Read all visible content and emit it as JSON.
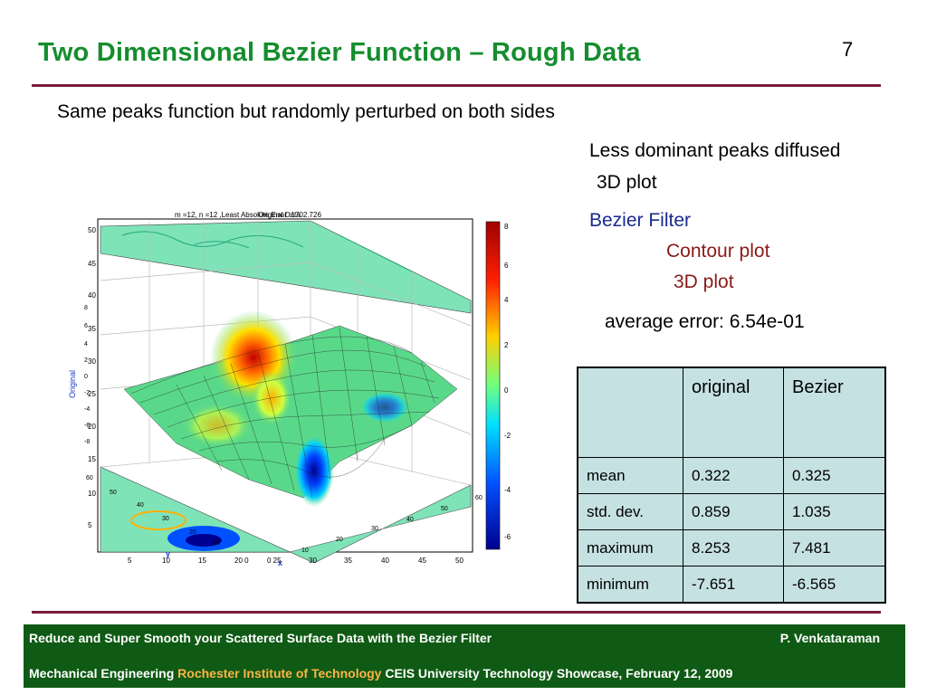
{
  "slide": {
    "title": "Two Dimensional Bezier Function – Rough Data",
    "number": "7",
    "subtitle": "Same peaks function but randomly perturbed on both sides",
    "notes": {
      "line1": "Less dominant peaks diffused",
      "line2": "3D plot",
      "bezier_filter": "Bezier Filter",
      "contour_plot": "Contour plot",
      "line5": "3D plot",
      "average_error": "average error: 6.54e-01"
    },
    "colors": {
      "title": "#158d2e",
      "rule": "#7d1b3f",
      "bezier": "#1a2a8c",
      "contour": "#8b1a1a",
      "footer_bg": "#0f5a14"
    }
  },
  "plot": {
    "header": "m =12, n =12 ,Least Absolute Error :1702.726",
    "overlay_header": "Original Data",
    "y_axis_labels": [
      "50",
      "45",
      "40",
      "35",
      "30",
      "25",
      "20",
      "15",
      "10",
      "5"
    ],
    "x_axis_labels": [
      "5",
      "10",
      "15",
      "20 0",
      "0 25",
      "30",
      "35",
      "40",
      "45",
      "50"
    ],
    "z_axis_labels": [
      "8",
      "6",
      "4",
      "2",
      "0",
      "-2",
      "-4",
      "-6",
      "-8"
    ],
    "colorbar_labels": [
      "8",
      "6",
      "4",
      "2",
      "0",
      "-2",
      "-4",
      "-6"
    ],
    "axis_names": {
      "x": "x",
      "y": "y",
      "z": "Original"
    },
    "contour_labels": [
      "50",
      "40",
      "30",
      "20",
      "10",
      "60",
      "60",
      "50",
      "40",
      "30",
      "20",
      "10"
    ]
  },
  "table": {
    "headers": [
      "",
      "original",
      "Bezier"
    ],
    "rows": [
      {
        "label": "mean",
        "original": "0.322",
        "bezier": "0.325"
      },
      {
        "label": "std. dev.",
        "original": "0.859",
        "bezier": "1.035"
      },
      {
        "label": "maximum",
        "original": "8.253",
        "bezier": "7.481"
      },
      {
        "label": "minimum",
        "original": "-7.651",
        "bezier": "-6.565"
      }
    ]
  },
  "footer": {
    "line1_left": "Reduce and Super Smooth your Scattered Surface Data with the Bezier Filter",
    "line1_right": "P. Venkataraman",
    "dept": "Mechanical Engineering",
    "institute": "Rochester Institute of Technology",
    "event": "CEIS University Technology Showcase,  February 12, 2009"
  }
}
